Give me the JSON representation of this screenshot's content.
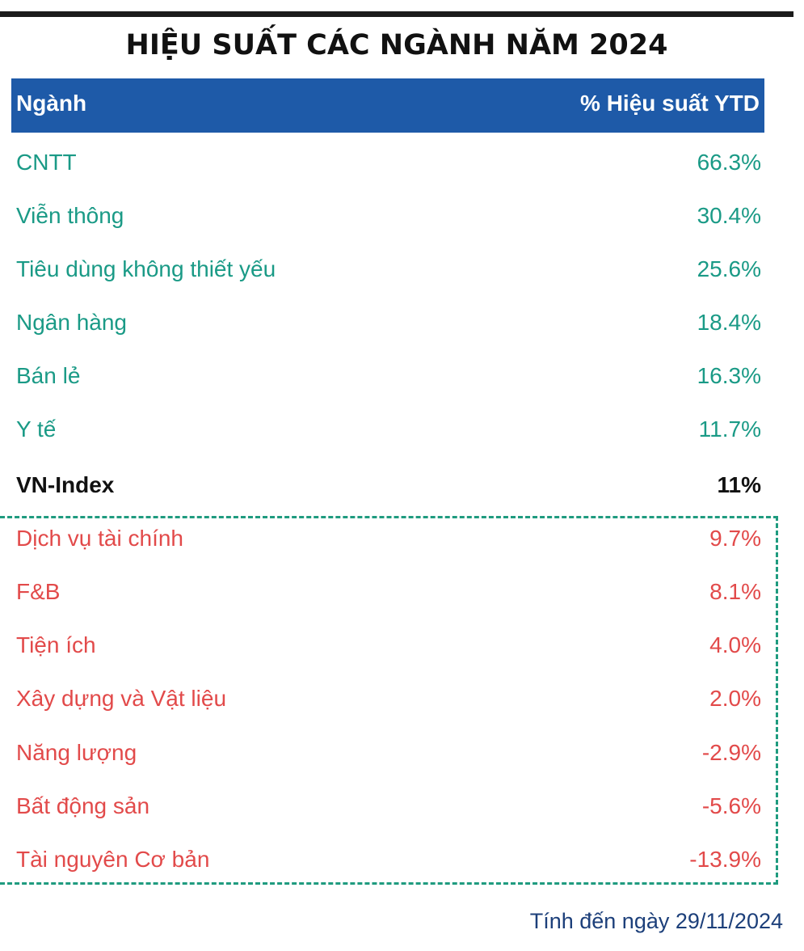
{
  "chart_data": {
    "type": "table",
    "title": "HIỆU SUẤT CÁC NGÀNH NĂM 2024",
    "columns": [
      "Ngành",
      "% Hiệu suất YTD"
    ],
    "rows": [
      {
        "sector": "CNTT",
        "value": "66.3%"
      },
      {
        "sector": "Viễn thông",
        "value": "30.4%"
      },
      {
        "sector": "Tiêu dùng không thiết yếu",
        "value": "25.6%"
      },
      {
        "sector": "Ngân hàng",
        "value": "18.4%"
      },
      {
        "sector": "Bán lẻ",
        "value": "16.3%"
      },
      {
        "sector": "Y tế",
        "value": "11.7%"
      },
      {
        "sector": "VN-Index",
        "value": "11%"
      },
      {
        "sector": "Dịch vụ tài chính",
        "value": "9.7%"
      },
      {
        "sector": "F&B",
        "value": "8.1%"
      },
      {
        "sector": "Tiện ích",
        "value": "4.0%"
      },
      {
        "sector": "Xây dựng và Vật liệu",
        "value": "2.0%"
      },
      {
        "sector": "Năng lượng",
        "value": "-2.9%"
      },
      {
        "sector": "Bất động sản",
        "value": "-5.6%"
      },
      {
        "sector": "Tài nguyên Cơ bản",
        "value": "-13.9%"
      }
    ],
    "footnote": "Tính đến ngày 29/11/2024"
  },
  "colors": {
    "header_bg": "#1e5aa8",
    "outperform_text": "#1a9a86",
    "benchmark_text": "#111111",
    "underperform_text": "#e24a4a",
    "dashed_border": "#1f9b7f",
    "footnote_text": "#1c3f7a"
  }
}
